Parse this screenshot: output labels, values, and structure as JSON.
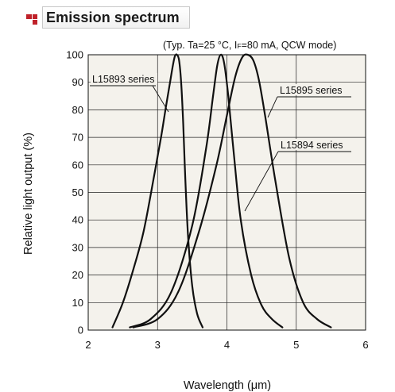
{
  "section": {
    "title": "Emission spectrum",
    "marker_color": "#c0222a"
  },
  "chart_data": {
    "type": "line",
    "title": "Emission spectrum",
    "subtitle": {
      "before": "(Typ. Ta=25 °C, I",
      "sub": "F",
      "after": "=80 mA, QCW mode)"
    },
    "xlabel": "Wavelength (μm)",
    "ylabel": "Relative light output (%)",
    "xlim": [
      2,
      6
    ],
    "ylim": [
      0,
      100
    ],
    "x_ticks": [
      "2",
      "3",
      "4",
      "5",
      "6"
    ],
    "y_ticks": [
      "0",
      "10",
      "20",
      "30",
      "40",
      "50",
      "60",
      "70",
      "80",
      "90",
      "100"
    ],
    "grid": true,
    "series": [
      {
        "name": "L15893 series",
        "x": [
          2.35,
          2.5,
          2.65,
          2.8,
          2.95,
          3.05,
          3.12,
          3.18,
          3.22,
          3.25,
          3.28,
          3.31,
          3.34,
          3.37,
          3.4,
          3.44,
          3.5,
          3.57,
          3.65
        ],
        "y": [
          1,
          10,
          22,
          36,
          56,
          70,
          81,
          90,
          96,
          99.5,
          100,
          98,
          90,
          75,
          55,
          34,
          16,
          6,
          1
        ]
      },
      {
        "name": "L15895 series",
        "x": [
          2.6,
          2.9,
          3.2,
          3.5,
          3.7,
          3.8,
          3.86,
          3.91,
          3.96,
          4.02,
          4.1,
          4.2,
          4.35,
          4.5,
          4.65,
          4.8
        ],
        "y": [
          1,
          4,
          14,
          38,
          66,
          85,
          96,
          100,
          97,
          85,
          64,
          40,
          20,
          9,
          4,
          1
        ]
      },
      {
        "name": "L15894 series",
        "x": [
          2.65,
          3.0,
          3.3,
          3.6,
          3.85,
          4.0,
          4.12,
          4.22,
          4.3,
          4.38,
          4.46,
          4.55,
          4.7,
          4.9,
          5.1,
          5.3,
          5.5
        ],
        "y": [
          1,
          4,
          14,
          36,
          60,
          78,
          92,
          99,
          100,
          98,
          91,
          78,
          54,
          26,
          10,
          4,
          1
        ]
      }
    ],
    "series_labels": [
      {
        "name": "L15893 series",
        "text": "L15893 series"
      },
      {
        "name": "L15895 series",
        "text": "L15895 series"
      },
      {
        "name": "L15894 series",
        "text": "L15894 series"
      }
    ],
    "colors": {
      "plot_background": "#f4f2ec",
      "line": "#111111",
      "grid": "#222222"
    }
  }
}
